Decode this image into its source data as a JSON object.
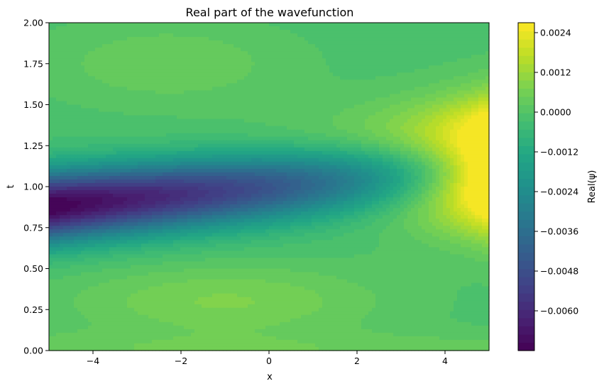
{
  "chart_data": {
    "type": "heatmap",
    "subtype": "filled-contour",
    "title": "Real part of the wavefunction",
    "xlabel": "x",
    "ylabel": "t",
    "xlim": [
      -5,
      5
    ],
    "ylim": [
      0,
      2
    ],
    "x_ticks": [
      -4,
      -2,
      0,
      2,
      4
    ],
    "x_tick_labels": [
      "−4",
      "−2",
      "0",
      "2",
      "4"
    ],
    "y_ticks": [
      0,
      0.25,
      0.5,
      0.75,
      1.0,
      1.25,
      1.5,
      1.75,
      2.0
    ],
    "y_tick_labels": [
      "0.00",
      "0.25",
      "0.50",
      "0.75",
      "1.00",
      "1.25",
      "1.50",
      "1.75",
      "2.00"
    ],
    "colormap": "viridis",
    "colorbar": {
      "label": "Real(ψ)",
      "range": [
        -0.0072,
        0.0027
      ],
      "ticks": [
        -0.006,
        -0.0048,
        -0.0036,
        -0.0024,
        -0.0012,
        0.0,
        0.0012,
        0.0024
      ],
      "tick_labels": [
        "−0.0060",
        "−0.0048",
        "−0.0036",
        "−0.0024",
        "−0.0012",
        "0.0000",
        "0.0012",
        "0.0024"
      ]
    },
    "levels": 40,
    "features": [
      {
        "x": -5.0,
        "t": 0.88,
        "value": -0.0072
      },
      {
        "x": 5.0,
        "t": 1.13,
        "value": 0.0027
      },
      {
        "x": -1.0,
        "t": 0.3,
        "value": 0.0009
      },
      {
        "x": -2.3,
        "t": 1.75,
        "value": 0.0006
      }
    ]
  }
}
